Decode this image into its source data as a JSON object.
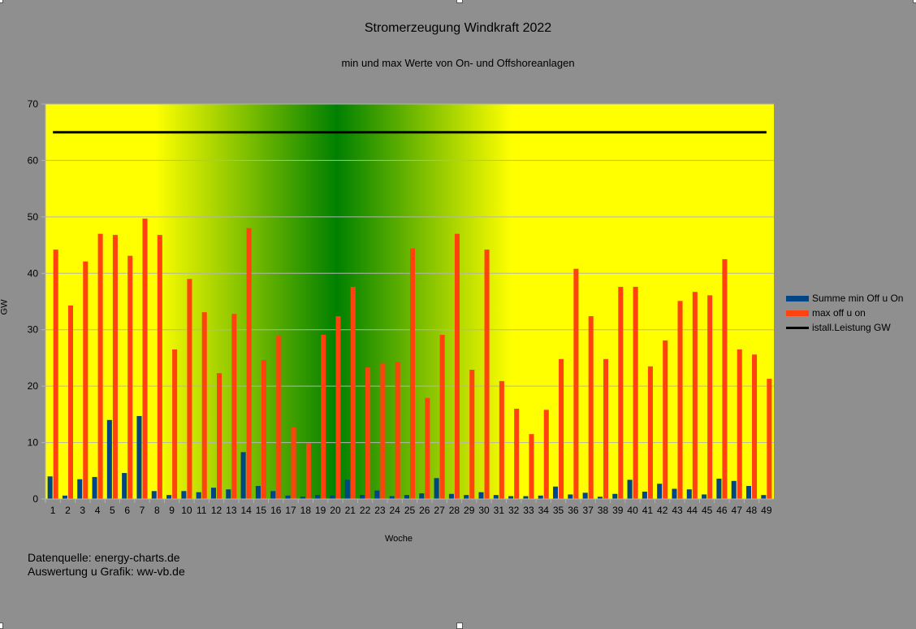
{
  "chart_data": {
    "type": "bar",
    "title": "Stromerzeugung Windkraft 2022",
    "subtitle": "min und max Werte von On- und Offshoreanlagen",
    "xlabel": "Woche",
    "ylabel": "GW",
    "ylim": [
      0,
      70
    ],
    "yticks": [
      0,
      10,
      20,
      30,
      40,
      50,
      60,
      70
    ],
    "grid": true,
    "legend_position": "right",
    "categories": [
      "1",
      "2",
      "3",
      "4",
      "5",
      "6",
      "7",
      "8",
      "9",
      "10",
      "11",
      "12",
      "13",
      "14",
      "15",
      "16",
      "17",
      "18",
      "19",
      "20",
      "21",
      "22",
      "23",
      "24",
      "25",
      "26",
      "27",
      "28",
      "29",
      "30",
      "31",
      "32",
      "33",
      "34",
      "35",
      "36",
      "37",
      "38",
      "39",
      "40",
      "41",
      "42",
      "43",
      "44",
      "45",
      "46",
      "47",
      "48",
      "49"
    ],
    "series": [
      {
        "name": "Summe min Off u On",
        "type": "bar",
        "color": "#004586",
        "values": [
          4.0,
          0.6,
          3.5,
          3.9,
          14.0,
          4.6,
          14.7,
          1.4,
          0.7,
          1.4,
          1.2,
          2.0,
          1.7,
          8.3,
          2.3,
          1.4,
          0.6,
          0.4,
          0.7,
          0.6,
          3.4,
          0.7,
          1.5,
          0.5,
          0.7,
          1.0,
          3.7,
          0.9,
          0.7,
          1.2,
          0.7,
          0.5,
          0.5,
          0.6,
          2.2,
          0.8,
          1.1,
          0.4,
          0.9,
          3.4,
          1.3,
          2.7,
          1.8,
          1.7,
          0.8,
          3.6,
          3.2,
          2.3,
          0.7
        ]
      },
      {
        "name": "max off u on",
        "type": "bar",
        "color": "#ff420e",
        "values": [
          44.2,
          34.3,
          42.1,
          47.0,
          46.8,
          43.1,
          49.7,
          46.8,
          26.5,
          39.0,
          33.1,
          22.3,
          32.8,
          48.0,
          24.6,
          29.0,
          12.7,
          9.9,
          29.1,
          32.4,
          37.6,
          23.3,
          24.1,
          24.3,
          44.4,
          17.9,
          29.1,
          47.0,
          22.9,
          44.2,
          20.9,
          16.0,
          11.5,
          15.8,
          24.8,
          40.8,
          32.4,
          24.8,
          37.6,
          37.6,
          23.5,
          28.1,
          35.1,
          36.7,
          36.1,
          42.5,
          26.5,
          25.6,
          21.3
        ]
      },
      {
        "name": "istall.Leistung GW",
        "type": "line",
        "color": "#000000",
        "value": 65
      }
    ]
  },
  "footer": {
    "source": "Datenquelle: energy-charts.de",
    "author": "Auswertung u Grafik: ww-vb.de"
  }
}
